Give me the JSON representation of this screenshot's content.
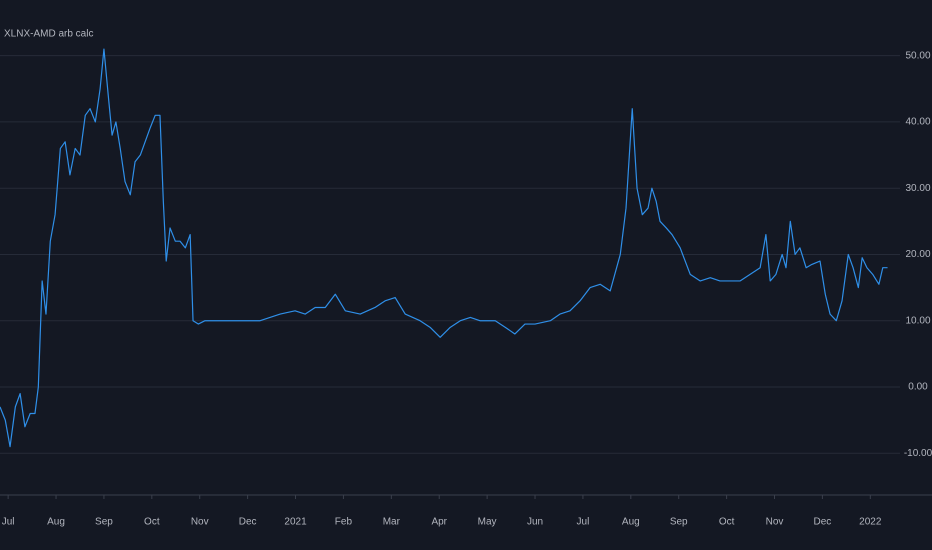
{
  "chart_data": {
    "type": "line",
    "title": "XLNX-AMD arb calc",
    "color": "#2f8fe8",
    "x": [
      -0.17,
      -0.06,
      0.04,
      0.15,
      0.25,
      0.35,
      0.46,
      0.56,
      0.63,
      0.71,
      0.79,
      0.88,
      0.98,
      1.09,
      1.19,
      1.29,
      1.4,
      1.5,
      1.61,
      1.71,
      1.82,
      1.92,
      2.0,
      2.09,
      2.17,
      2.25,
      2.34,
      2.44,
      2.55,
      2.65,
      2.76,
      2.86,
      2.96,
      3.07,
      3.17,
      3.24,
      3.3,
      3.38,
      3.49,
      3.59,
      3.7,
      3.8,
      3.86,
      3.97,
      4.11,
      4.43,
      4.84,
      5.26,
      5.68,
      5.99,
      6.2,
      6.41,
      6.62,
      6.83,
      7.04,
      7.35,
      7.66,
      7.87,
      8.08,
      8.29,
      8.6,
      8.81,
      9.02,
      9.23,
      9.44,
      9.65,
      9.85,
      10.17,
      10.38,
      10.58,
      10.79,
      11.0,
      11.32,
      11.52,
      11.73,
      11.94,
      12.15,
      12.36,
      12.57,
      12.78,
      12.9,
      13.03,
      13.13,
      13.24,
      13.36,
      13.44,
      13.53,
      13.61,
      13.74,
      13.86,
      14.03,
      14.24,
      14.45,
      14.66,
      14.86,
      15.07,
      15.28,
      15.49,
      15.7,
      15.82,
      15.91,
      16.03,
      16.16,
      16.24,
      16.33,
      16.43,
      16.53,
      16.66,
      16.78,
      16.95,
      17.06,
      17.16,
      17.29,
      17.41,
      17.54,
      17.64,
      17.75,
      17.83,
      17.93,
      18.05,
      18.18,
      18.26,
      18.36
    ],
    "values": [
      -3,
      -5,
      -9,
      -3,
      -1,
      -6,
      -4,
      -4,
      0,
      16,
      11,
      22,
      26,
      36,
      37,
      32,
      36,
      35,
      41,
      42,
      40,
      45,
      51,
      44,
      38,
      40,
      36,
      31,
      29,
      34,
      35,
      37,
      39,
      41,
      41,
      28,
      19,
      24,
      22,
      22,
      21,
      23,
      10,
      9.5,
      10,
      10,
      10,
      10,
      11,
      11.5,
      11,
      12,
      12,
      14,
      11.5,
      11,
      12,
      13,
      13.5,
      11,
      10,
      9,
      7.5,
      9,
      10,
      10.5,
      10,
      10,
      9,
      8,
      9.5,
      9.5,
      10,
      11,
      11.5,
      13,
      15,
      15.5,
      14.5,
      20,
      27,
      42,
      30,
      26,
      27,
      30,
      28,
      25,
      24,
      23,
      21,
      17,
      16,
      16.5,
      16,
      16,
      16,
      17,
      18,
      23,
      16,
      17,
      20,
      18,
      25,
      20,
      21,
      18,
      18.5,
      19,
      14,
      11,
      10,
      13,
      20,
      18,
      15,
      19.5,
      18,
      17,
      15.5,
      18,
      18
    ],
    "xlim": [
      -0.17,
      18.62
    ],
    "ylim": [
      -16.3,
      58.4
    ],
    "xticks": [
      {
        "value": 0,
        "label": "Jul"
      },
      {
        "value": 1,
        "label": "Aug"
      },
      {
        "value": 2,
        "label": "Sep"
      },
      {
        "value": 3,
        "label": "Oct"
      },
      {
        "value": 4,
        "label": "Nov"
      },
      {
        "value": 5,
        "label": "Dec"
      },
      {
        "value": 6,
        "label": "2021"
      },
      {
        "value": 7,
        "label": "Feb"
      },
      {
        "value": 8,
        "label": "Mar"
      },
      {
        "value": 9,
        "label": "Apr"
      },
      {
        "value": 10,
        "label": "May"
      },
      {
        "value": 11,
        "label": "Jun"
      },
      {
        "value": 12,
        "label": "Jul"
      },
      {
        "value": 13,
        "label": "Aug"
      },
      {
        "value": 14,
        "label": "Sep"
      },
      {
        "value": 15,
        "label": "Oct"
      },
      {
        "value": 16,
        "label": "Nov"
      },
      {
        "value": 17,
        "label": "Dec"
      },
      {
        "value": 18,
        "label": "2022"
      }
    ],
    "yticks": [
      {
        "value": 50,
        "label": "50.00"
      },
      {
        "value": 40,
        "label": "40.00"
      },
      {
        "value": 30,
        "label": "30.00"
      },
      {
        "value": 20,
        "label": "20.00"
      },
      {
        "value": 10,
        "label": "10.00"
      },
      {
        "value": 0,
        "label": "0.00"
      },
      {
        "value": -10,
        "label": "-10.00"
      }
    ],
    "grid": true
  }
}
